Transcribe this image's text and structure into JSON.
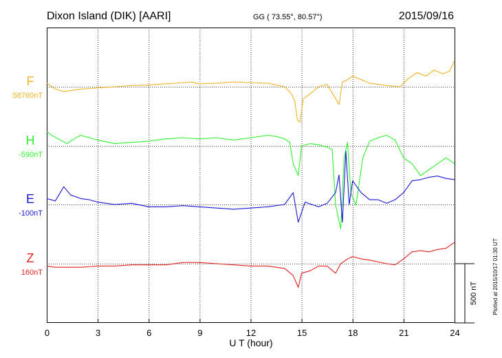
{
  "chart_data": {
    "type": "line",
    "station": "Dixon Island (DIK)  [AARI]",
    "coords": "GG ( 73.55°,  80.57°)",
    "date": "2015/09/16",
    "xlabel": "U T (hour)",
    "xlim": [
      0,
      24
    ],
    "xticks": [
      0,
      3,
      6,
      9,
      12,
      15,
      18,
      21,
      24
    ],
    "scale_label": "500 nT",
    "scale_nt": 500,
    "plotted_note": "Plotted at 2015/10/17 01:30 UT",
    "series": [
      {
        "name": "F",
        "baseline_label": "58760nT",
        "color": "#f4b223",
        "points": [
          [
            0,
            30
          ],
          [
            0.5,
            -20
          ],
          [
            1.0,
            -40
          ],
          [
            1.5,
            -30
          ],
          [
            2.0,
            -20
          ],
          [
            3.0,
            -10
          ],
          [
            4.0,
            0
          ],
          [
            5.0,
            10
          ],
          [
            6.0,
            15
          ],
          [
            7.0,
            25
          ],
          [
            8.0,
            35
          ],
          [
            8.5,
            40
          ],
          [
            9.0,
            25
          ],
          [
            10.0,
            30
          ],
          [
            11.0,
            40
          ],
          [
            12.0,
            35
          ],
          [
            13.0,
            30
          ],
          [
            14.0,
            0
          ],
          [
            14.4,
            -60
          ],
          [
            14.6,
            -120
          ],
          [
            14.75,
            -280
          ],
          [
            14.9,
            -300
          ],
          [
            15.1,
            -100
          ],
          [
            15.5,
            -60
          ],
          [
            16.0,
            0
          ],
          [
            16.5,
            20
          ],
          [
            17.0,
            -100
          ],
          [
            17.2,
            -150
          ],
          [
            17.4,
            40
          ],
          [
            17.7,
            60
          ],
          [
            18.0,
            90
          ],
          [
            18.5,
            60
          ],
          [
            19.0,
            30
          ],
          [
            20.0,
            10
          ],
          [
            20.8,
            0
          ],
          [
            21.2,
            60
          ],
          [
            21.8,
            120
          ],
          [
            22.3,
            90
          ],
          [
            22.8,
            140
          ],
          [
            23.3,
            110
          ],
          [
            23.7,
            130
          ],
          [
            24.0,
            220
          ]
        ]
      },
      {
        "name": "H",
        "baseline_label": "-590nT",
        "color": "#2df02d",
        "points": [
          [
            0,
            120
          ],
          [
            0.4,
            80
          ],
          [
            0.8,
            50
          ],
          [
            1.2,
            20
          ],
          [
            1.6,
            60
          ],
          [
            2.0,
            90
          ],
          [
            2.5,
            70
          ],
          [
            3.0,
            50
          ],
          [
            4.0,
            20
          ],
          [
            5.0,
            30
          ],
          [
            6.0,
            40
          ],
          [
            7.0,
            60
          ],
          [
            8.0,
            70
          ],
          [
            9.0,
            60
          ],
          [
            10.0,
            70
          ],
          [
            11.0,
            50
          ],
          [
            12.0,
            70
          ],
          [
            13.0,
            90
          ],
          [
            13.5,
            80
          ],
          [
            14.0,
            60
          ],
          [
            14.3,
            30
          ],
          [
            14.5,
            -150
          ],
          [
            14.8,
            -250
          ],
          [
            15.0,
            0
          ],
          [
            15.5,
            20
          ],
          [
            16.0,
            10
          ],
          [
            16.5,
            -10
          ],
          [
            16.8,
            -30
          ],
          [
            17.0,
            -500
          ],
          [
            17.3,
            -700
          ],
          [
            17.5,
            -100
          ],
          [
            17.7,
            30
          ],
          [
            17.9,
            -400
          ],
          [
            18.2,
            -500
          ],
          [
            18.4,
            -300
          ],
          [
            18.6,
            -100
          ],
          [
            19.0,
            40
          ],
          [
            19.5,
            70
          ],
          [
            20.0,
            90
          ],
          [
            20.5,
            50
          ],
          [
            21.0,
            -100
          ],
          [
            21.5,
            -150
          ],
          [
            22.0,
            -250
          ],
          [
            22.5,
            -200
          ],
          [
            23.0,
            -150
          ],
          [
            23.5,
            -100
          ],
          [
            24.0,
            -150
          ]
        ]
      },
      {
        "name": "E",
        "baseline_label": "-100nT",
        "color": "#1616d6",
        "points": [
          [
            0,
            50
          ],
          [
            0.5,
            30
          ],
          [
            1.0,
            150
          ],
          [
            1.4,
            80
          ],
          [
            2.0,
            50
          ],
          [
            2.5,
            40
          ],
          [
            3.0,
            20
          ],
          [
            3.5,
            10
          ],
          [
            4.0,
            0
          ],
          [
            5.0,
            10
          ],
          [
            6.0,
            -20
          ],
          [
            7.0,
            -20
          ],
          [
            8.0,
            -10
          ],
          [
            9.0,
            -20
          ],
          [
            10.0,
            -30
          ],
          [
            11.0,
            -40
          ],
          [
            12.0,
            -30
          ],
          [
            13.0,
            -20
          ],
          [
            14.0,
            0
          ],
          [
            14.5,
            100
          ],
          [
            14.8,
            -150
          ],
          [
            15.2,
            20
          ],
          [
            15.6,
            0
          ],
          [
            16.0,
            -20
          ],
          [
            16.5,
            10
          ],
          [
            17.0,
            100
          ],
          [
            17.2,
            250
          ],
          [
            17.4,
            -150
          ],
          [
            17.6,
            450
          ],
          [
            17.8,
            0
          ],
          [
            18.0,
            200
          ],
          [
            18.5,
            100
          ],
          [
            19.0,
            40
          ],
          [
            19.5,
            40
          ],
          [
            20.0,
            10
          ],
          [
            20.5,
            40
          ],
          [
            21.0,
            100
          ],
          [
            21.5,
            200
          ],
          [
            22.0,
            210
          ],
          [
            22.5,
            230
          ],
          [
            23.0,
            240
          ],
          [
            23.5,
            220
          ],
          [
            24.0,
            210
          ]
        ]
      },
      {
        "name": "Z",
        "baseline_label": "160nT",
        "color": "#e32020",
        "points": [
          [
            0,
            -20
          ],
          [
            0.5,
            -30
          ],
          [
            1.0,
            -30
          ],
          [
            2.0,
            -30
          ],
          [
            3.0,
            -20
          ],
          [
            4.0,
            -20
          ],
          [
            5.0,
            -10
          ],
          [
            6.0,
            -10
          ],
          [
            7.0,
            -10
          ],
          [
            8.0,
            10
          ],
          [
            9.0,
            10
          ],
          [
            10.0,
            0
          ],
          [
            11.0,
            -10
          ],
          [
            12.0,
            -20
          ],
          [
            13.0,
            -20
          ],
          [
            14.0,
            -40
          ],
          [
            14.5,
            -100
          ],
          [
            14.8,
            -200
          ],
          [
            15.0,
            -80
          ],
          [
            15.5,
            -60
          ],
          [
            16.0,
            -20
          ],
          [
            16.5,
            -20
          ],
          [
            17.0,
            -80
          ],
          [
            17.3,
            0
          ],
          [
            17.7,
            40
          ],
          [
            18.0,
            60
          ],
          [
            18.5,
            40
          ],
          [
            19.0,
            30
          ],
          [
            20.0,
            0
          ],
          [
            20.5,
            -10
          ],
          [
            21.0,
            40
          ],
          [
            21.5,
            100
          ],
          [
            22.0,
            110
          ],
          [
            22.5,
            100
          ],
          [
            23.0,
            120
          ],
          [
            23.5,
            130
          ],
          [
            24.0,
            180
          ]
        ]
      }
    ]
  }
}
